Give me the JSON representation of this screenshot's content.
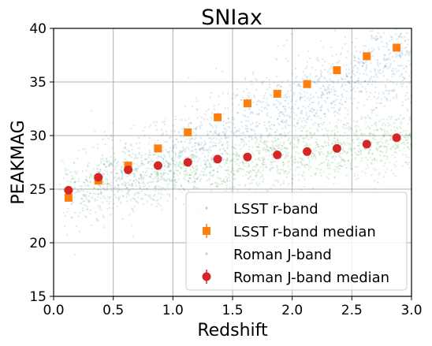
{
  "chart_data": {
    "type": "scatter",
    "title": "SNIax",
    "xlabel": "Redshift",
    "ylabel": "PEAKMAG",
    "xlim": [
      0.0,
      3.0
    ],
    "ylim": [
      15,
      40
    ],
    "xticks": [
      "0.0",
      "0.5",
      "1.0",
      "1.5",
      "2.0",
      "2.5",
      "3.0"
    ],
    "yticks": [
      "15",
      "20",
      "25",
      "30",
      "35",
      "40"
    ],
    "grid": true,
    "legend_position": "lower-right",
    "series": [
      {
        "name": "LSST r-band",
        "kind": "cloud",
        "color": "#1f77b4",
        "description_values": {
          "x_range": [
            0.05,
            3.0
          ],
          "center_start": 24.0,
          "center_end": 37.5,
          "spread": 2.3
        }
      },
      {
        "name": "LSST r-band median",
        "kind": "median",
        "marker": "square",
        "color": "#ff7f0e",
        "x": [
          0.125,
          0.375,
          0.625,
          0.875,
          1.125,
          1.375,
          1.625,
          1.875,
          2.125,
          2.375,
          2.625,
          2.875
        ],
        "y": [
          24.2,
          25.8,
          27.2,
          28.8,
          30.3,
          31.7,
          33.0,
          33.9,
          34.8,
          36.1,
          37.4,
          38.2
        ]
      },
      {
        "name": "Roman J-band",
        "kind": "cloud",
        "color": "#2ca02c",
        "description_values": {
          "x_range": [
            0.05,
            3.0
          ],
          "center_start": 25.0,
          "center_end": 29.8,
          "spread": 1.6
        }
      },
      {
        "name": "Roman J-band median",
        "kind": "median",
        "marker": "circle",
        "color": "#d62728",
        "x": [
          0.125,
          0.375,
          0.625,
          0.875,
          1.125,
          1.375,
          1.625,
          1.875,
          2.125,
          2.375,
          2.625,
          2.875
        ],
        "y": [
          24.9,
          26.1,
          26.8,
          27.2,
          27.5,
          27.8,
          28.0,
          28.2,
          28.5,
          28.8,
          29.2,
          29.8
        ]
      }
    ]
  }
}
